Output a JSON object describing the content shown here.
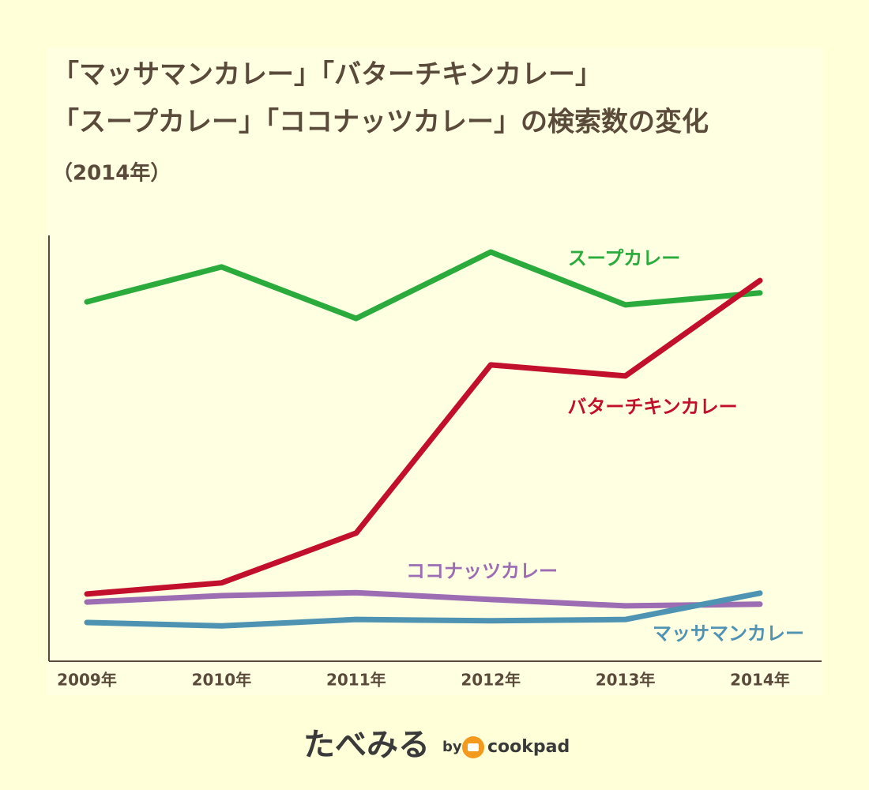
{
  "chart_data": {
    "type": "line",
    "title": [
      "「マッサマンカレー」「バターチキンカレー」",
      "「スープカレー」「ココナッツカレー」の検索数の変化"
    ],
    "subtitle": "（2014年）",
    "categories": [
      "2009年",
      "2010年",
      "2011年",
      "2012年",
      "2013年",
      "2014年"
    ],
    "ylim": [
      0,
      100
    ],
    "series": [
      {
        "name": "スープカレー",
        "color": "#2aab3b",
        "values": [
          84.4,
          92.6,
          80.5,
          96.1,
          83.7,
          86.5
        ]
      },
      {
        "name": "バターチキンカレー",
        "color": "#c20f2b",
        "values": [
          15.8,
          18.4,
          30.1,
          69.6,
          67.0,
          89.4
        ]
      },
      {
        "name": "ココナッツカレー",
        "color": "#9c6db3",
        "values": [
          13.9,
          15.4,
          16.1,
          14.5,
          13.0,
          13.4
        ]
      },
      {
        "name": "マッサマンカレー",
        "color": "#4f93b3",
        "values": [
          9.1,
          8.3,
          9.8,
          9.5,
          9.8,
          16.0
        ]
      }
    ],
    "footer": {
      "brand": "たべみる",
      "by": "by",
      "partner": "cookpad"
    }
  }
}
